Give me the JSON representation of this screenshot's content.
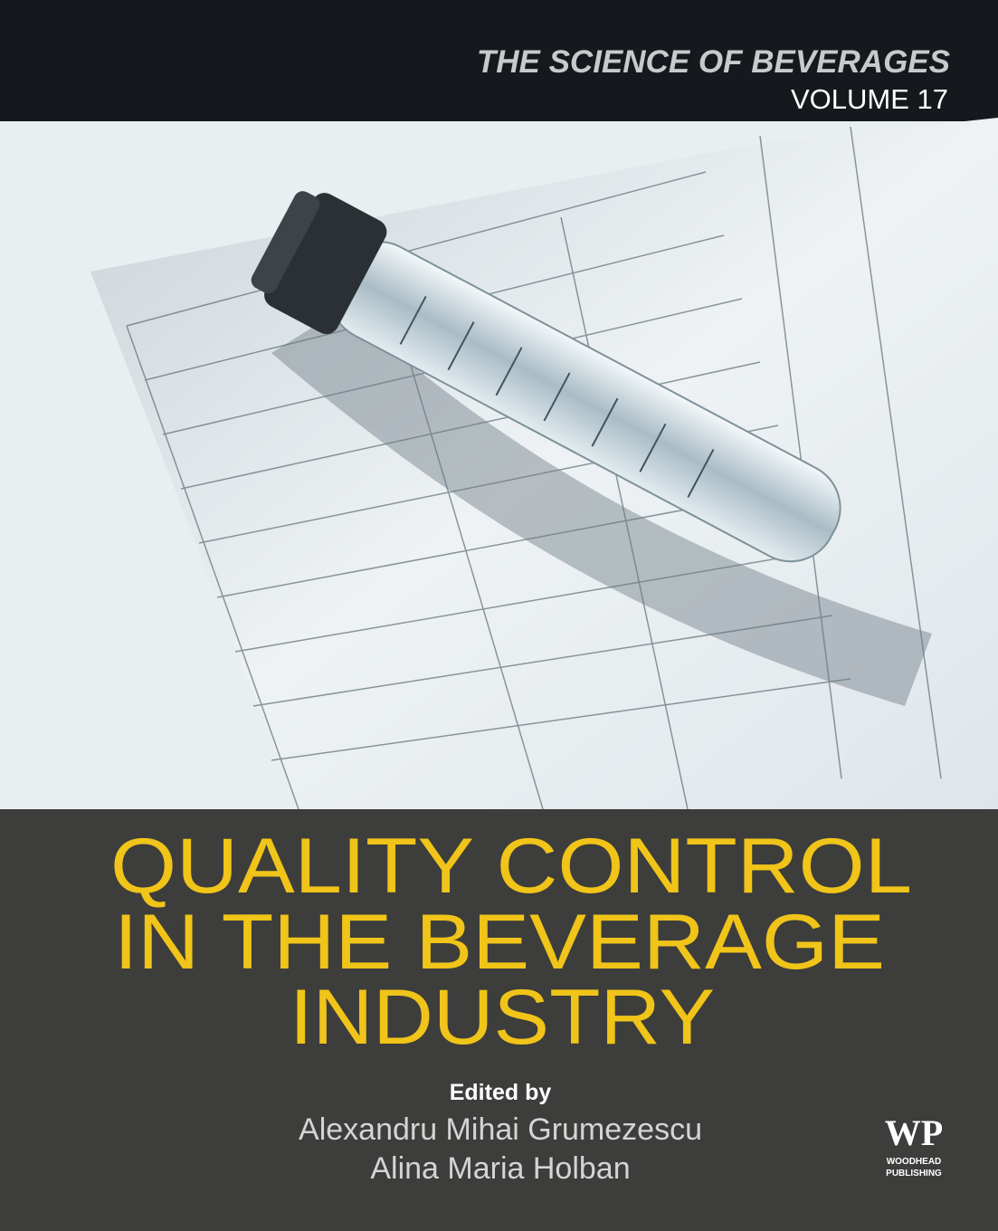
{
  "cover": {
    "series": "THE SCIENCE OF BEVERAGES",
    "volume": "VOLUME 17",
    "title_lines": [
      "QUALITY CONTROL",
      "IN THE BEVERAGE",
      "INDUSTRY"
    ],
    "edited_by": "Edited by",
    "editors": [
      "Alexandru Mihai Grumezescu",
      "Alina Maria Holban"
    ],
    "publisher": {
      "logo": "WP",
      "name_lines": [
        "WOODHEAD",
        "PUBLISHING"
      ]
    }
  }
}
